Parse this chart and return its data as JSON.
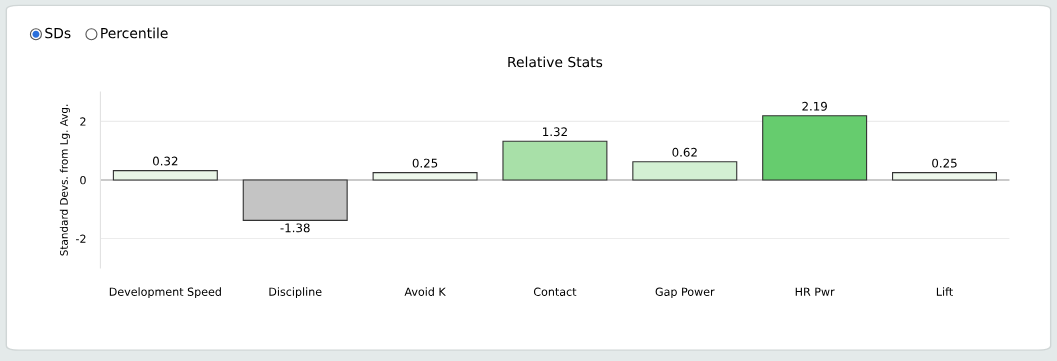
{
  "chart_data": {
    "type": "bar",
    "title": "Relative Stats",
    "ylabel": "Standard Devs. from Lg. Avg.",
    "categories": [
      "Development Speed",
      "Discipline",
      "Avoid K",
      "Contact",
      "Gap Power",
      "HR Pwr",
      "Lift"
    ],
    "values": [
      0.32,
      -1.38,
      0.25,
      1.32,
      0.62,
      2.19,
      0.25
    ],
    "colors": [
      "#e8f5e6",
      "#c4c4c4",
      "#eef8ec",
      "#a8e0a8",
      "#d3f0d3",
      "#66cc6e",
      "#eef8ec"
    ],
    "ylim": [
      -3,
      3
    ],
    "yticks": [
      -2,
      0,
      2
    ],
    "grid": "y",
    "data_labels": true,
    "annotations": [
      "SDs",
      "Percentile"
    ]
  }
}
